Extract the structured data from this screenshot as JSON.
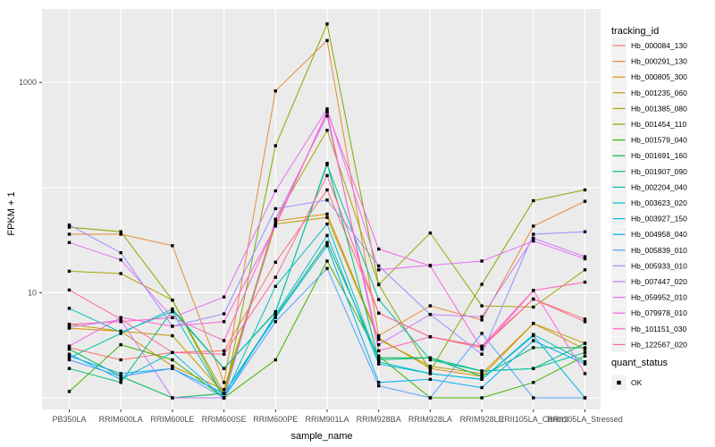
{
  "chart_data": {
    "type": "line",
    "title": "",
    "xlabel": "sample_name",
    "ylabel": "FPKM + 1",
    "y_scale": "log10",
    "y_tick_labels": [
      "10",
      "1000"
    ],
    "y_tick_values": [
      10,
      1000
    ],
    "y_gridline_values": [
      1,
      10,
      100,
      1000
    ],
    "ylim": [
      0.78,
      5000
    ],
    "grid": "on",
    "panel_bg": "#EBEBEB",
    "gridline_color": "#FFFFFF",
    "point_color": "#000000",
    "point_shape": "square",
    "legend_position": "right",
    "legend": {
      "title": "tracking_id"
    },
    "quant_legend": {
      "title": "quant_status",
      "items": [
        {
          "label": "OK"
        }
      ]
    },
    "categories": [
      "PB350LA",
      "RRIM600LA",
      "RRIM600LE",
      "RRIM600SE",
      "RRIM600PE",
      "RRIM901LA",
      "RRIM928BA",
      "RRIM928LA",
      "RRIM928LE",
      "RRII105LA_Control",
      "RRII105LA_Stressed"
    ],
    "series": [
      {
        "name": "Hb_000084_130",
        "color": "#F8766D",
        "values": [
          3.0,
          2.3,
          2.7,
          2.8,
          19.5,
          95,
          6.4,
          3.8,
          3.0,
          8.7,
          5.6
        ]
      },
      {
        "name": "Hb_000291_130",
        "color": "#E78A33",
        "values": [
          36,
          36,
          28,
          1.4,
          830,
          2500,
          3.9,
          7.5,
          5.5,
          43,
          74
        ]
      },
      {
        "name": "Hb_000805_300",
        "color": "#D59100",
        "values": [
          4.6,
          4.3,
          2.0,
          1.2,
          48,
          56,
          3.7,
          1.9,
          1.6,
          5.1,
          2.9
        ]
      },
      {
        "name": "Hb_001235_060",
        "color": "#C19B00",
        "values": [
          5.0,
          4.3,
          3.9,
          1.1,
          45,
          52,
          3.6,
          2.0,
          1.7,
          5.1,
          3.3
        ]
      },
      {
        "name": "Hb_001385_080",
        "color": "#A6A500",
        "values": [
          16,
          15.2,
          8.5,
          1.1,
          50,
          350,
          11.9,
          37,
          7.5,
          7.3,
          16.5
        ]
      },
      {
        "name": "Hb_001454_110",
        "color": "#7FAD00",
        "values": [
          42,
          38,
          8.5,
          1.0,
          250,
          3600,
          12,
          1.8,
          12,
          75,
          95
        ]
      },
      {
        "name": "Hb_001579_040",
        "color": "#3FB500",
        "values": [
          1.15,
          3.2,
          2.3,
          1.0,
          2.3,
          20,
          2.5,
          1.0,
          1.0,
          1.4,
          2.5
        ]
      },
      {
        "name": "Hb_001691_160",
        "color": "#00BA4F",
        "values": [
          2.9,
          1.6,
          1.0,
          1.1,
          6.0,
          30,
          2.4,
          2.4,
          1.6,
          3.0,
          3.0
        ]
      },
      {
        "name": "Hb_001907_090",
        "color": "#00BE7D",
        "values": [
          1.9,
          1.4,
          6.8,
          1.9,
          6.5,
          170,
          2.3,
          2.4,
          1.8,
          1.9,
          3.3
        ]
      },
      {
        "name": "Hb_002204_040",
        "color": "#00C0A5",
        "values": [
          2.4,
          4.1,
          7.0,
          1.9,
          6.6,
          165,
          8.6,
          2.3,
          1.8,
          1.9,
          2.7
        ]
      },
      {
        "name": "Hb_003623_020",
        "color": "#00BFC6",
        "values": [
          7.1,
          4.2,
          6.6,
          1.0,
          11.5,
          45,
          2.2,
          1.7,
          1.5,
          4.0,
          2.2
        ]
      },
      {
        "name": "Hb_003927_150",
        "color": "#00B9E2",
        "values": [
          2.6,
          1.5,
          2.7,
          1.0,
          6.2,
          35,
          2.1,
          1.7,
          1.5,
          3.9,
          1.0
        ]
      },
      {
        "name": "Hb_004958_040",
        "color": "#00AFF8",
        "values": [
          2.5,
          1.7,
          1.9,
          1.1,
          5.8,
          28,
          1.4,
          1.5,
          1.25,
          3.5,
          2.1
        ]
      },
      {
        "name": "Hb_005839_010",
        "color": "#4FA0FF",
        "values": [
          2.3,
          1.6,
          1.9,
          1.0,
          5.3,
          17,
          1.3,
          1.0,
          4.1,
          1.0,
          1.0
        ]
      },
      {
        "name": "Hb_005933_010",
        "color": "#9590FF",
        "values": [
          44,
          24,
          4.8,
          6.3,
          63,
          76,
          18,
          6.2,
          2.6,
          36,
          38
        ]
      },
      {
        "name": "Hb_007447_020",
        "color": "#C77CFF",
        "values": [
          4.7,
          5.5,
          1.0,
          1.0,
          50,
          480,
          3.2,
          6.2,
          5.9,
          33,
          22
        ]
      },
      {
        "name": "Hb_059952_010",
        "color": "#E86FF3",
        "values": [
          30,
          20.5,
          5.8,
          9.1,
          93,
          560,
          16.5,
          18.2,
          20,
          31,
          21
        ]
      },
      {
        "name": "Hb_079978_010",
        "color": "#F863DF",
        "values": [
          3.1,
          5.8,
          4.8,
          5.3,
          43,
          530,
          26,
          18,
          2.9,
          10.5,
          1.7
        ]
      },
      {
        "name": "Hb_101151_030",
        "color": "#FF61C0",
        "values": [
          5.0,
          5.3,
          5.8,
          3.5,
          45,
          520,
          2.8,
          3.8,
          3.1,
          10.5,
          12.6
        ]
      },
      {
        "name": "Hb_122567_020",
        "color": "#FF689B",
        "values": [
          10.6,
          5.6,
          2.7,
          2.6,
          14,
          130,
          6.4,
          3.8,
          3.1,
          8.7,
          5.3
        ]
      }
    ]
  }
}
